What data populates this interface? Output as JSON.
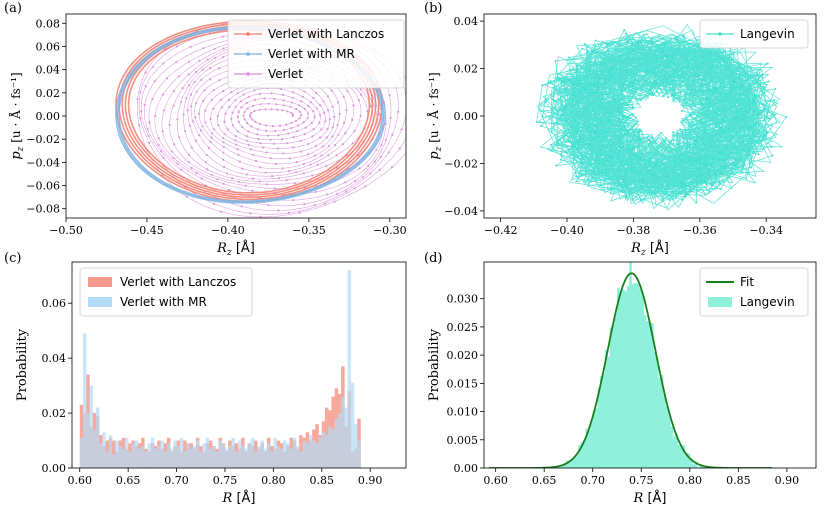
{
  "chart_data": [
    {
      "panel": "(a)",
      "type": "line",
      "xlabel_var": "R",
      "xlabel_sub": "z",
      "xlabel_unit": "[Å]",
      "ylabel_var": "p",
      "ylabel_sub": "z",
      "ylabel_unit": "[u · Å · fs⁻¹]",
      "xlim": [
        -0.5,
        -0.29
      ],
      "ylim": [
        -0.088,
        0.088
      ],
      "xticks": [
        -0.5,
        -0.45,
        -0.4,
        -0.35,
        -0.3
      ],
      "xtick_labels": [
        "−0.50",
        "−0.45",
        "−0.40",
        "−0.35",
        "−0.30"
      ],
      "yticks": [
        -0.08,
        -0.06,
        -0.04,
        -0.02,
        0.0,
        0.02,
        0.04,
        0.06,
        0.08
      ],
      "ytick_labels": [
        "−0.08",
        "−0.06",
        "−0.04",
        "−0.02",
        "0.00",
        "0.02",
        "0.04",
        "0.06",
        "0.08"
      ],
      "legend_position": "top-right",
      "series": [
        {
          "name": "Verlet",
          "color": "#da8fdc",
          "shape": "spiral",
          "center": [
            -0.372,
            0.0
          ],
          "r_inner": [
            0.012,
            0.0045
          ],
          "r_outer": [
            0.088,
            0.086
          ],
          "turns": 22
        },
        {
          "name": "Verlet with Lanczos",
          "color": "#f27b6b",
          "shape": "ellipse",
          "center": [
            -0.387,
            0.004
          ],
          "radii": [
            0.078,
            0.074
          ],
          "bands": 5
        },
        {
          "name": "Verlet with MR",
          "color": "#7fb3e0",
          "shape": "ellipse",
          "center": [
            -0.386,
            0.001
          ],
          "radii": [
            0.082,
            0.075
          ],
          "bands": 3
        }
      ]
    },
    {
      "panel": "(b)",
      "type": "line",
      "xlabel_var": "R",
      "xlabel_sub": "z",
      "xlabel_unit": "[Å]",
      "ylabel_var": "p",
      "ylabel_sub": "z",
      "ylabel_unit": "[u · Å · fs⁻¹]",
      "xlim": [
        -0.425,
        -0.325
      ],
      "ylim": [
        -0.043,
        0.043
      ],
      "xticks": [
        -0.42,
        -0.4,
        -0.38,
        -0.36,
        -0.34
      ],
      "xtick_labels": [
        "−0.42",
        "−0.40",
        "−0.38",
        "−0.36",
        "−0.34"
      ],
      "yticks": [
        -0.04,
        -0.02,
        0.0,
        0.02,
        0.04
      ],
      "ytick_labels": [
        "−0.04",
        "−0.02",
        "0.00",
        "0.02",
        "0.04"
      ],
      "legend_position": "top-right",
      "series": [
        {
          "name": "Langevin",
          "color": "#40e0d0",
          "shape": "cloud",
          "center": [
            -0.372,
            0.0
          ],
          "radii": [
            0.037,
            0.039
          ]
        }
      ]
    },
    {
      "panel": "(c)",
      "type": "bar",
      "xlabel_var": "R",
      "xlabel_unit": "[Å]",
      "ylabel": "Probability",
      "xlim": [
        0.592,
        0.937
      ],
      "ylim": [
        0,
        0.075
      ],
      "xticks": [
        0.6,
        0.65,
        0.7,
        0.75,
        0.8,
        0.85,
        0.9
      ],
      "xtick_labels": [
        "0.60",
        "0.65",
        "0.70",
        "0.75",
        "0.80",
        "0.85",
        "0.90"
      ],
      "yticks": [
        0.0,
        0.02,
        0.04,
        0.06
      ],
      "ytick_labels": [
        "0.00",
        "0.02",
        "0.04",
        "0.06"
      ],
      "legend_position": "top-left",
      "bin_start": 0.6,
      "bin_width": 0.003333,
      "series": [
        {
          "name": "Verlet with Lanczos",
          "color": "#f79a8c",
          "values": [
            0.023,
            0.02,
            0.034,
            0.015,
            0.02,
            0.019,
            0.012,
            0.008,
            0.01,
            0.011,
            0.01,
            0.006,
            0.01,
            0.011,
            0.007,
            0.009,
            0.01,
            0.008,
            0.009,
            0.011,
            0.007,
            0.006,
            0.009,
            0.008,
            0.01,
            0.007,
            0.009,
            0.011,
            0.006,
            0.008,
            0.01,
            0.006,
            0.01,
            0.009,
            0.009,
            0.007,
            0.011,
            0.008,
            0.006,
            0.009,
            0.01,
            0.008,
            0.007,
            0.011,
            0.009,
            0.006,
            0.01,
            0.008,
            0.009,
            0.007,
            0.011,
            0.006,
            0.009,
            0.008,
            0.01,
            0.007,
            0.009,
            0.006,
            0.011,
            0.008,
            0.007,
            0.01,
            0.009,
            0.006,
            0.008,
            0.011,
            0.01,
            0.007,
            0.012,
            0.011,
            0.013,
            0.01,
            0.014,
            0.016,
            0.012,
            0.017,
            0.022,
            0.021,
            0.026,
            0.029,
            0.027,
            0.037,
            0.015,
            0.028,
            0.006,
            0.007,
            0.018
          ]
        },
        {
          "name": "Verlet with MR",
          "color": "#b3dbf5",
          "values": [
            0.011,
            0.049,
            0.02,
            0.03,
            0.014,
            0.022,
            0.009,
            0.013,
            0.006,
            0.012,
            0.005,
            0.01,
            0.008,
            0.007,
            0.011,
            0.006,
            0.009,
            0.01,
            0.007,
            0.008,
            0.006,
            0.009,
            0.011,
            0.007,
            0.008,
            0.01,
            0.006,
            0.009,
            0.007,
            0.01,
            0.008,
            0.011,
            0.006,
            0.009,
            0.007,
            0.008,
            0.01,
            0.006,
            0.009,
            0.011,
            0.007,
            0.008,
            0.006,
            0.01,
            0.009,
            0.007,
            0.008,
            0.011,
            0.006,
            0.01,
            0.008,
            0.007,
            0.009,
            0.011,
            0.006,
            0.008,
            0.01,
            0.007,
            0.009,
            0.006,
            0.011,
            0.008,
            0.007,
            0.01,
            0.009,
            0.007,
            0.011,
            0.008,
            0.006,
            0.01,
            0.009,
            0.012,
            0.01,
            0.009,
            0.011,
            0.013,
            0.012,
            0.015,
            0.014,
            0.018,
            0.02,
            0.026,
            0.022,
            0.072,
            0.031,
            0.016,
            0.01
          ]
        }
      ]
    },
    {
      "panel": "(d)",
      "type": "bar",
      "xlabel_var": "R",
      "xlabel_unit": "[Å]",
      "ylabel": "Probability",
      "xlim": [
        0.588,
        0.93
      ],
      "ylim": [
        0,
        0.0365
      ],
      "xticks": [
        0.6,
        0.65,
        0.7,
        0.75,
        0.8,
        0.85,
        0.9
      ],
      "xtick_labels": [
        "0.60",
        "0.65",
        "0.70",
        "0.75",
        "0.80",
        "0.85",
        "0.90"
      ],
      "yticks": [
        0.0,
        0.005,
        0.01,
        0.015,
        0.02,
        0.025,
        0.03
      ],
      "ytick_labels": [
        "0.00",
        "0.005",
        "0.010",
        "0.015",
        "0.020",
        "0.025",
        "0.030"
      ],
      "legend_position": "top-right",
      "fit": {
        "name": "Fit",
        "color": "#1a7f1a",
        "mean": 0.74,
        "sigma": 0.0245,
        "amplitude": 0.0345
      },
      "histogram": {
        "name": "Langevin",
        "color": "#8ff0dc",
        "bin_start": 0.61,
        "bin_width": 0.0025,
        "bins": 100
      }
    }
  ]
}
